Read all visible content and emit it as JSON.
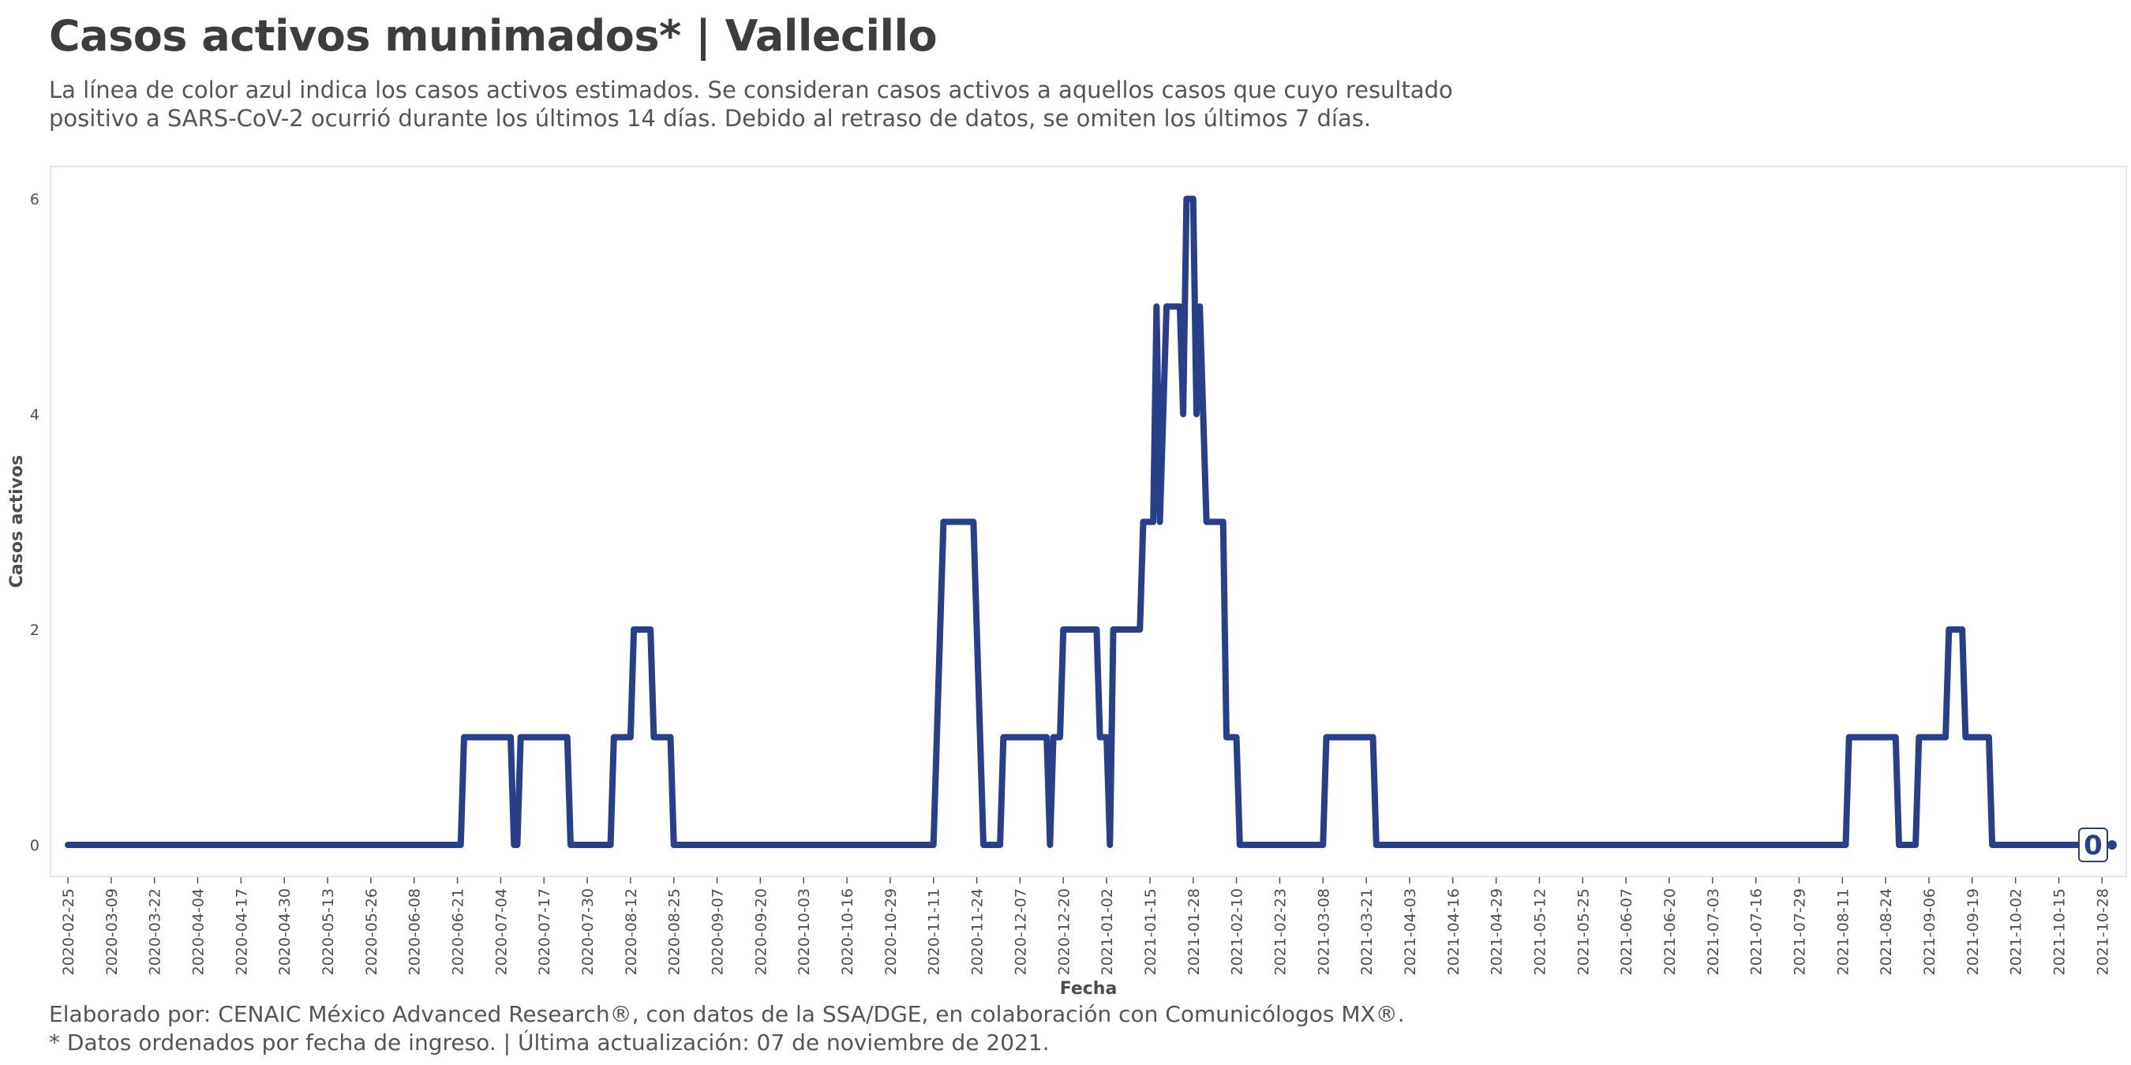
{
  "title": "Casos activos munimados* | Vallecillo",
  "subtitle": "La línea de color azul indica los casos activos estimados. Se consideran casos activos a aquellos casos que cuyo resultado positivo a SARS-CoV-2 ocurrió durante los últimos 14 días. Debido al retraso de datos, se omiten los últimos 7 días.",
  "caption_lines": [
    "Elaborado por: CENAIC México Advanced Research®, con datos de la SSA/DGE, en colaboración con Comunicólogos MX®.",
    "* Datos ordenados por fecha de ingreso. | Última actualización: 07 de noviembre de 2021."
  ],
  "colors": {
    "line": "#2a3f8a",
    "panel_border": "#dddddd",
    "text": "#4d4d4d"
  },
  "chart_data": {
    "type": "line",
    "title": "Casos activos munimados* | Vallecillo",
    "xlabel": "Fecha",
    "ylabel": "Casos activos",
    "ylim": [
      0,
      6
    ],
    "xlim": [
      "2020-02-25",
      "2021-10-31"
    ],
    "y_ticks": [
      0,
      2,
      4,
      6
    ],
    "x_tick_labels": [
      "2020-02-25",
      "2020-03-09",
      "2020-03-22",
      "2020-04-04",
      "2020-04-17",
      "2020-04-30",
      "2020-05-13",
      "2020-05-26",
      "2020-06-08",
      "2020-06-21",
      "2020-07-04",
      "2020-07-17",
      "2020-07-30",
      "2020-08-12",
      "2020-08-25",
      "2020-09-07",
      "2020-09-20",
      "2020-10-03",
      "2020-10-16",
      "2020-10-29",
      "2020-11-11",
      "2020-11-24",
      "2020-12-07",
      "2020-12-20",
      "2021-01-02",
      "2021-01-15",
      "2021-01-28",
      "2021-02-10",
      "2021-02-23",
      "2021-03-08",
      "2021-03-21",
      "2021-04-03",
      "2021-04-16",
      "2021-04-29",
      "2021-05-12",
      "2021-05-25",
      "2021-06-07",
      "2021-06-20",
      "2021-07-03",
      "2021-07-16",
      "2021-07-29",
      "2021-08-11",
      "2021-08-24",
      "2021-09-06",
      "2021-09-19",
      "2021-10-02",
      "2021-10-15",
      "2021-10-28"
    ],
    "grid": false,
    "legend": "none",
    "end_value_label": "0",
    "series": [
      {
        "points": [
          [
            "2020-02-25",
            0
          ],
          [
            "2020-06-22",
            0
          ],
          [
            "2020-06-23",
            1
          ],
          [
            "2020-07-07",
            1
          ],
          [
            "2020-07-08",
            0
          ],
          [
            "2020-07-09",
            0
          ],
          [
            "2020-07-10",
            1
          ],
          [
            "2020-07-24",
            1
          ],
          [
            "2020-07-25",
            0
          ],
          [
            "2020-08-06",
            0
          ],
          [
            "2020-08-07",
            1
          ],
          [
            "2020-08-12",
            1
          ],
          [
            "2020-08-13",
            2
          ],
          [
            "2020-08-18",
            2
          ],
          [
            "2020-08-19",
            1
          ],
          [
            "2020-08-24",
            1
          ],
          [
            "2020-08-25",
            0
          ],
          [
            "2020-11-11",
            0
          ],
          [
            "2020-11-12",
            1
          ],
          [
            "2020-11-13",
            2
          ],
          [
            "2020-11-14",
            3
          ],
          [
            "2020-11-23",
            3
          ],
          [
            "2020-11-24",
            2
          ],
          [
            "2020-11-25",
            1
          ],
          [
            "2020-11-26",
            0
          ],
          [
            "2020-12-01",
            0
          ],
          [
            "2020-12-02",
            1
          ],
          [
            "2020-12-15",
            1
          ],
          [
            "2020-12-16",
            0
          ],
          [
            "2020-12-17",
            1
          ],
          [
            "2020-12-19",
            1
          ],
          [
            "2020-12-20",
            2
          ],
          [
            "2020-12-30",
            2
          ],
          [
            "2020-12-31",
            1
          ],
          [
            "2021-01-02",
            1
          ],
          [
            "2021-01-03",
            0
          ],
          [
            "2021-01-04",
            2
          ],
          [
            "2021-01-12",
            2
          ],
          [
            "2021-01-13",
            3
          ],
          [
            "2021-01-16",
            3
          ],
          [
            "2021-01-17",
            5
          ],
          [
            "2021-01-18",
            3
          ],
          [
            "2021-01-19",
            4
          ],
          [
            "2021-01-20",
            5
          ],
          [
            "2021-01-24",
            5
          ],
          [
            "2021-01-25",
            4
          ],
          [
            "2021-01-26",
            6
          ],
          [
            "2021-01-28",
            6
          ],
          [
            "2021-01-29",
            4
          ],
          [
            "2021-01-30",
            5
          ],
          [
            "2021-01-31",
            4
          ],
          [
            "2021-02-01",
            3
          ],
          [
            "2021-02-06",
            3
          ],
          [
            "2021-02-07",
            1
          ],
          [
            "2021-02-10",
            1
          ],
          [
            "2021-02-11",
            0
          ],
          [
            "2021-03-08",
            0
          ],
          [
            "2021-03-09",
            1
          ],
          [
            "2021-03-23",
            1
          ],
          [
            "2021-03-24",
            0
          ],
          [
            "2021-08-12",
            0
          ],
          [
            "2021-08-13",
            1
          ],
          [
            "2021-08-27",
            1
          ],
          [
            "2021-08-28",
            0
          ],
          [
            "2021-09-02",
            0
          ],
          [
            "2021-09-03",
            1
          ],
          [
            "2021-09-11",
            1
          ],
          [
            "2021-09-12",
            2
          ],
          [
            "2021-09-16",
            2
          ],
          [
            "2021-09-17",
            1
          ],
          [
            "2021-09-24",
            1
          ],
          [
            "2021-09-25",
            0
          ],
          [
            "2021-10-31",
            0
          ]
        ]
      }
    ]
  }
}
